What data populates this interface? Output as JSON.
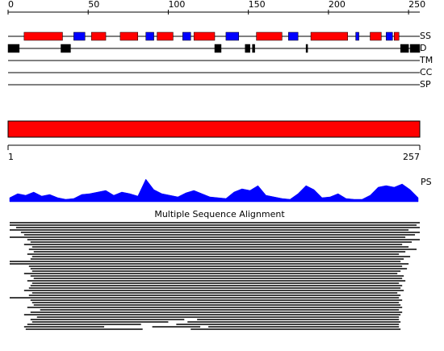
{
  "ruler": {
    "lim": [
      0,
      257
    ],
    "ticks": [
      0,
      50,
      100,
      150,
      200,
      250
    ]
  },
  "tracks": [
    {
      "label": "SS",
      "colors": {
        "H": "#ff0000",
        "E": "#0000ff"
      },
      "segments": [
        {
          "start": 10,
          "end": 34,
          "ss": "H"
        },
        {
          "start": 41,
          "end": 48,
          "ss": "E"
        },
        {
          "start": 52,
          "end": 61,
          "ss": "H"
        },
        {
          "start": 70,
          "end": 81,
          "ss": "H"
        },
        {
          "start": 86,
          "end": 91,
          "ss": "E"
        },
        {
          "start": 93,
          "end": 103,
          "ss": "H"
        },
        {
          "start": 109,
          "end": 114,
          "ss": "E"
        },
        {
          "start": 116,
          "end": 129,
          "ss": "H"
        },
        {
          "start": 136,
          "end": 144,
          "ss": "E"
        },
        {
          "start": 155,
          "end": 171,
          "ss": "H"
        },
        {
          "start": 175,
          "end": 181,
          "ss": "E"
        },
        {
          "start": 189,
          "end": 212,
          "ss": "H"
        },
        {
          "start": 217,
          "end": 219,
          "ss": "E"
        },
        {
          "start": 226,
          "end": 233,
          "ss": "H"
        },
        {
          "start": 236,
          "end": 240,
          "ss": "E"
        },
        {
          "start": 241,
          "end": 244,
          "ss": "H"
        }
      ]
    },
    {
      "label": "D",
      "colors": {
        "D": "#000000"
      },
      "segments": [
        {
          "start": 0,
          "end": 7,
          "ss": "D"
        },
        {
          "start": 33,
          "end": 39,
          "ss": "D"
        },
        {
          "start": 129,
          "end": 133,
          "ss": "D"
        },
        {
          "start": 148,
          "end": 151,
          "ss": "D"
        },
        {
          "start": 152.5,
          "end": 154,
          "ss": "D"
        },
        {
          "start": 186,
          "end": 187,
          "ss": "D"
        },
        {
          "start": 245,
          "end": 250,
          "ss": "D"
        },
        {
          "start": 251,
          "end": 257,
          "ss": "D"
        }
      ]
    },
    {
      "label": "TM",
      "colors": {},
      "segments": []
    },
    {
      "label": "CC",
      "colors": {},
      "segments": []
    },
    {
      "label": "SP",
      "colors": {},
      "segments": []
    }
  ],
  "sequence_bar": {
    "start": 1,
    "end": 257,
    "color": "#ff0000"
  },
  "bottom_ruler": {
    "lim": [
      1,
      257
    ],
    "ticks": [
      1,
      257
    ]
  },
  "profile": {
    "label": "PS",
    "color": "#0000ff",
    "ylim": [
      0,
      30
    ],
    "positions": [
      1,
      6,
      11,
      16,
      21,
      26,
      31,
      36,
      41,
      46,
      51,
      56,
      61,
      66,
      71,
      76,
      81,
      86,
      91,
      96,
      101,
      106,
      111,
      116,
      121,
      126,
      131,
      136,
      141,
      146,
      151,
      156,
      161,
      166,
      171,
      176,
      181,
      186,
      191,
      196,
      201,
      206,
      211,
      216,
      221,
      226,
      231,
      236,
      241,
      246,
      251,
      256
    ],
    "values": [
      5,
      10,
      8,
      12,
      7,
      9,
      5,
      3,
      4,
      9,
      10,
      12,
      14,
      8,
      12,
      10,
      7,
      28,
      15,
      10,
      8,
      6,
      11,
      14,
      10,
      6,
      5,
      4,
      12,
      16,
      14,
      20,
      8,
      6,
      4,
      3,
      10,
      20,
      15,
      5,
      6,
      10,
      4,
      3,
      3,
      8,
      18,
      20,
      18,
      22,
      15,
      5
    ]
  },
  "alignment": {
    "title": "Multiple Sequence Alignment",
    "rows": [
      [
        [
          1,
          257
        ]
      ],
      [
        [
          1,
          255
        ]
      ],
      [
        [
          5,
          257
        ]
      ],
      [
        [
          1,
          250
        ]
      ],
      [
        [
          8,
          257
        ]
      ],
      [
        [
          10,
          254
        ]
      ],
      [
        [
          1,
          248
        ]
      ],
      [
        [
          12,
          257
        ]
      ],
      [
        [
          14,
          252
        ]
      ],
      [
        [
          10,
          246
        ]
      ],
      [
        [
          15,
          250
        ]
      ],
      [
        [
          13,
          255
        ]
      ],
      [
        [
          16,
          248
        ]
      ],
      [
        [
          12,
          244
        ]
      ],
      [
        [
          15,
          251
        ]
      ],
      [
        [
          14,
          247
        ]
      ],
      [
        [
          1,
          245
        ]
      ],
      [
        [
          1,
          250
        ]
      ],
      [
        [
          13,
          246
        ]
      ],
      [
        [
          14,
          249
        ]
      ],
      [
        [
          15,
          245
        ]
      ],
      [
        [
          10,
          243
        ]
      ],
      [
        [
          14,
          247
        ]
      ],
      [
        [
          16,
          246
        ]
      ],
      [
        [
          12,
          248
        ]
      ],
      [
        [
          15,
          244
        ]
      ],
      [
        [
          14,
          246
        ]
      ],
      [
        [
          13,
          245
        ]
      ],
      [
        [
          10,
          247
        ]
      ],
      [
        [
          15,
          243
        ]
      ],
      [
        [
          13,
          245
        ]
      ],
      [
        [
          1,
          244
        ]
      ],
      [
        [
          14,
          246
        ]
      ],
      [
        [
          15,
          244
        ]
      ],
      [
        [
          16,
          245
        ]
      ],
      [
        [
          12,
          246
        ]
      ],
      [
        [
          20,
          244
        ]
      ],
      [
        [
          14,
          246
        ]
      ],
      [
        [
          10,
          245
        ]
      ],
      [
        [
          18,
          244
        ]
      ],
      [
        [
          14,
          110
        ],
        [
          118,
          244
        ]
      ],
      [
        [
          15,
          100
        ],
        [
          112,
          245
        ]
      ],
      [
        [
          12,
          83
        ],
        [
          105,
          244
        ]
      ],
      [
        [
          10,
          60
        ],
        [
          90,
          120
        ],
        [
          125,
          244
        ]
      ],
      [
        [
          11,
          84
        ],
        [
          114,
          245
        ]
      ]
    ]
  }
}
